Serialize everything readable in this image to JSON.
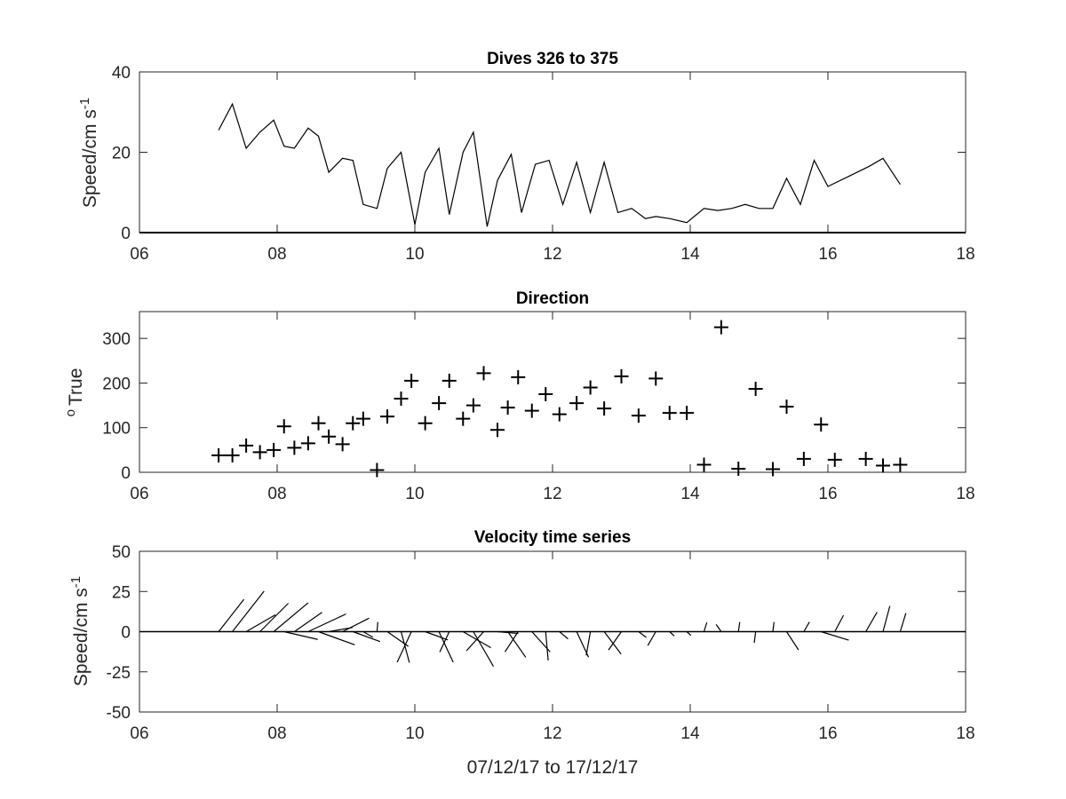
{
  "chart_data": [
    {
      "type": "line",
      "title": "Dives 326 to 375",
      "ylabel": "Speed/cm s",
      "ylabel_sup": "-1",
      "xlim": [
        6,
        18
      ],
      "ylim": [
        0,
        40
      ],
      "xticks": [
        "06",
        "08",
        "10",
        "12",
        "14",
        "16",
        "18"
      ],
      "yticks": [
        "0",
        "20",
        "40"
      ],
      "x": [
        7.15,
        7.35,
        7.55,
        7.75,
        7.95,
        8.1,
        8.25,
        8.45,
        8.6,
        8.75,
        8.95,
        9.1,
        9.25,
        9.45,
        9.6,
        9.8,
        10.0,
        10.15,
        10.35,
        10.5,
        10.7,
        10.85,
        11.05,
        11.2,
        11.4,
        11.55,
        11.75,
        11.95,
        12.15,
        12.35,
        12.55,
        12.75,
        12.95,
        13.15,
        13.35,
        13.5,
        13.7,
        13.95,
        14.2,
        14.4,
        14.6,
        14.8,
        15.0,
        15.2,
        15.4,
        15.6,
        15.8,
        16.0,
        16.3,
        16.6,
        16.8,
        17.05
      ],
      "y": [
        25.5,
        32,
        21,
        25,
        28,
        21.5,
        21,
        26,
        24,
        15,
        18.5,
        18,
        7,
        6,
        16,
        20,
        2,
        15,
        21,
        4.5,
        20,
        25,
        1.5,
        13,
        19.5,
        5,
        17,
        18,
        7,
        17.5,
        5,
        17.5,
        5,
        6,
        3.5,
        4,
        3.5,
        2.5,
        6,
        5.5,
        6,
        7,
        6,
        6,
        13.5,
        7,
        18,
        11.5,
        14,
        16.5,
        18.5,
        12
      ]
    },
    {
      "type": "scatter",
      "title": "Direction",
      "ylabel": "True",
      "ylabel_sup": "o",
      "marker": "+",
      "xlim": [
        6,
        18
      ],
      "ylim": [
        0,
        360
      ],
      "xticks": [
        "06",
        "08",
        "10",
        "12",
        "14",
        "16",
        "18"
      ],
      "yticks": [
        "0",
        "100",
        "200",
        "300"
      ],
      "x": [
        7.15,
        7.35,
        7.55,
        7.75,
        7.95,
        8.1,
        8.25,
        8.45,
        8.6,
        8.75,
        8.95,
        9.1,
        9.25,
        9.45,
        9.6,
        9.8,
        9.95,
        10.15,
        10.35,
        10.5,
        10.7,
        10.85,
        11.0,
        11.2,
        11.35,
        11.5,
        11.7,
        11.9,
        12.1,
        12.35,
        12.55,
        12.75,
        13.0,
        13.25,
        13.5,
        13.7,
        13.95,
        14.2,
        14.45,
        14.7,
        14.95,
        15.2,
        15.4,
        15.65,
        15.9,
        16.1,
        16.55,
        16.8,
        17.05
      ],
      "y": [
        38,
        38,
        60,
        45,
        50,
        103,
        55,
        65,
        110,
        80,
        63,
        110,
        120,
        5,
        125,
        165,
        205,
        110,
        155,
        205,
        120,
        150,
        222,
        95,
        145,
        213,
        138,
        175,
        130,
        155,
        190,
        143,
        215,
        127,
        210,
        133,
        133,
        17,
        325,
        8,
        187,
        7,
        147,
        30,
        107,
        28,
        30,
        15,
        17
      ]
    },
    {
      "type": "quiver",
      "title": "Velocity time series",
      "ylabel": "Speed/cm s",
      "ylabel_sup": "-1",
      "xlabel": "07/12/17 to 17/12/17",
      "xlim": [
        6,
        18
      ],
      "ylim": [
        -50,
        50
      ],
      "xticks": [
        "06",
        "08",
        "10",
        "12",
        "14",
        "16",
        "18"
      ],
      "yticks": [
        "50",
        "25",
        "0",
        "-25",
        "-50"
      ],
      "t": [
        7.15,
        7.35,
        7.55,
        7.75,
        7.95,
        8.1,
        8.25,
        8.45,
        8.6,
        8.75,
        8.95,
        9.1,
        9.25,
        9.45,
        9.6,
        9.8,
        9.95,
        10.15,
        10.35,
        10.5,
        10.7,
        10.85,
        11.0,
        11.2,
        11.35,
        11.5,
        11.7,
        11.9,
        12.1,
        12.35,
        12.55,
        12.75,
        13.0,
        13.25,
        13.5,
        13.7,
        13.95,
        14.2,
        14.45,
        14.7,
        14.95,
        15.2,
        15.4,
        15.65,
        15.9,
        16.1,
        16.55,
        16.8,
        17.05
      ],
      "speed": [
        25.5,
        32,
        21,
        25,
        28,
        21.5,
        21,
        26,
        24,
        15,
        18.5,
        18,
        7,
        6,
        16,
        20,
        21,
        15,
        21,
        14,
        20,
        25,
        16,
        13,
        19.5,
        15,
        17,
        18,
        7,
        17.5,
        15,
        17.5,
        14,
        6,
        10,
        4,
        3.5,
        6,
        5.5,
        6,
        7,
        6,
        13.5,
        7,
        18,
        11.5,
        14,
        16.5,
        12
      ],
      "direction": [
        38,
        38,
        60,
        45,
        50,
        103,
        55,
        65,
        110,
        80,
        63,
        110,
        120,
        5,
        125,
        165,
        205,
        110,
        155,
        205,
        120,
        150,
        222,
        95,
        145,
        213,
        138,
        175,
        130,
        155,
        190,
        143,
        215,
        127,
        210,
        133,
        133,
        17,
        325,
        8,
        187,
        7,
        147,
        30,
        107,
        28,
        30,
        15,
        17
      ]
    }
  ]
}
